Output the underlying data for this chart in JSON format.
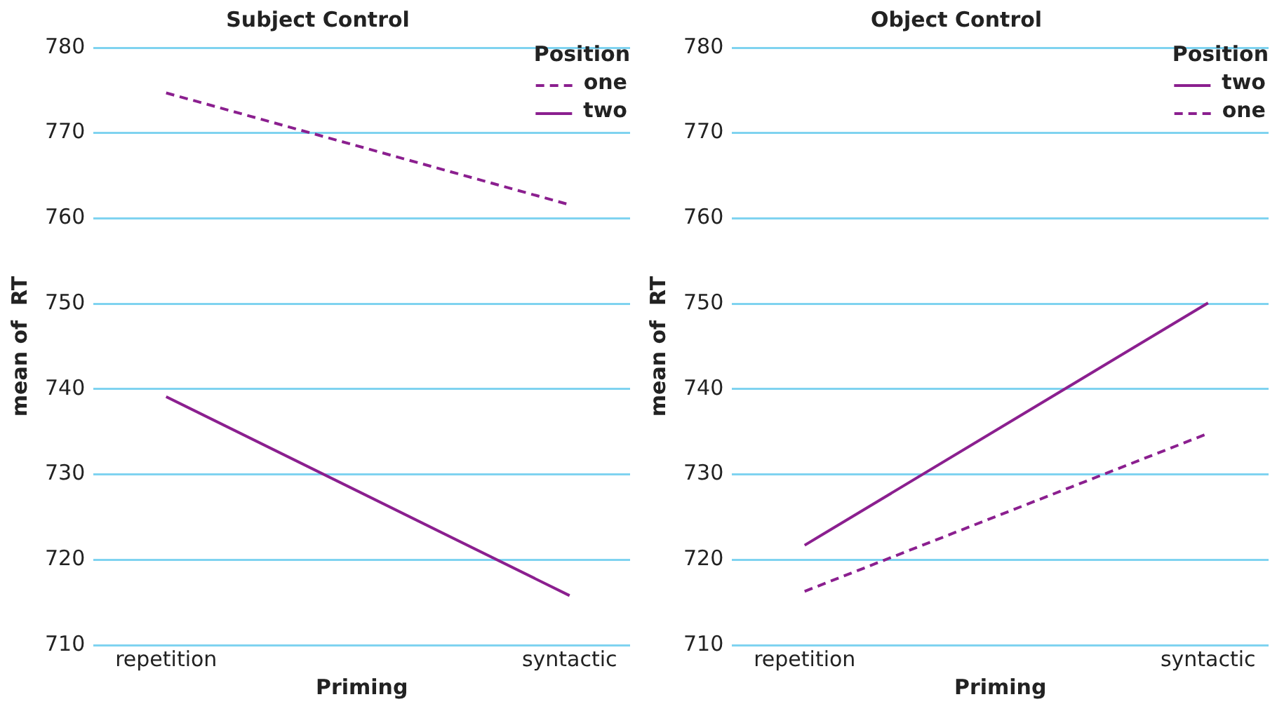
{
  "chart_data": [
    {
      "type": "line",
      "title": "Subject Control",
      "xlabel": "Priming",
      "ylabel": "mean of  RT",
      "legend_title": "Position",
      "legend": "top right",
      "grid": "y",
      "marker": "none",
      "categories": [
        "repetition",
        "syntactic"
      ],
      "ylim": [
        710,
        780
      ],
      "yticks": [
        710,
        720,
        730,
        740,
        750,
        760,
        770,
        780
      ],
      "series": [
        {
          "name": "one",
          "color": "#8b1f8f",
          "line_style": "dashed",
          "values": [
            774.7,
            761.6
          ]
        },
        {
          "name": "two",
          "color": "#8b1f8f",
          "line_style": "solid",
          "values": [
            739.1,
            715.8
          ]
        }
      ]
    },
    {
      "type": "line",
      "title": "Object Control",
      "xlabel": "Priming",
      "ylabel": "mean of  RT",
      "legend_title": "Position",
      "legend": "top right",
      "grid": "y",
      "marker": "none",
      "categories": [
        "repetition",
        "syntactic"
      ],
      "ylim": [
        710,
        780
      ],
      "yticks": [
        710,
        720,
        730,
        740,
        750,
        760,
        770,
        780
      ],
      "series": [
        {
          "name": "two",
          "color": "#8b1f8f",
          "line_style": "solid",
          "values": [
            721.7,
            750.1
          ]
        },
        {
          "name": "one",
          "color": "#8b1f8f",
          "line_style": "dashed",
          "values": [
            716.3,
            734.8
          ]
        }
      ]
    }
  ]
}
